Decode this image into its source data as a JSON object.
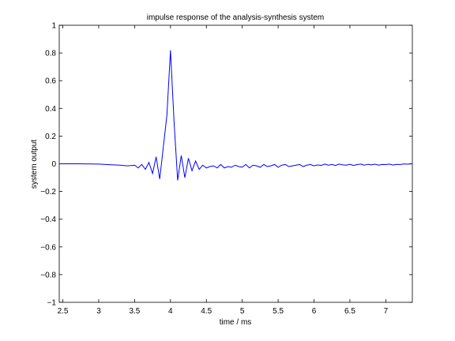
{
  "chart_data": {
    "type": "line",
    "title": "impulse response of the analysis-synthesis system",
    "xlabel": "time / ms",
    "ylabel": "system output",
    "xlim": [
      2.45,
      7.37
    ],
    "ylim": [
      -1,
      1
    ],
    "grid": false,
    "legend": "none",
    "xticks": [
      2.5,
      3,
      3.5,
      4,
      4.5,
      5,
      5.5,
      6,
      6.5,
      7
    ],
    "xtick_labels": [
      "2.5",
      "3",
      "3.5",
      "4",
      "4.5",
      "5",
      "5.5",
      "6",
      "6.5",
      "7"
    ],
    "yticks": [
      -1,
      -0.8,
      -0.6,
      -0.4,
      -0.2,
      0,
      0.2,
      0.4,
      0.6,
      0.8,
      1
    ],
    "ytick_labels": [
      "−1",
      "−0.8",
      "−0.6",
      "−0.4",
      "−0.2",
      "0",
      "0.2",
      "0.4",
      "0.6",
      "0.8",
      "1"
    ],
    "series": [
      {
        "color": "#0000ff",
        "x": [
          2.45,
          2.7,
          3.0,
          3.1,
          3.2,
          3.3,
          3.4,
          3.5,
          3.55,
          3.6,
          3.65,
          3.7,
          3.75,
          3.8,
          3.85,
          3.9,
          3.95,
          4.0,
          4.05,
          4.1,
          4.15,
          4.2,
          4.25,
          4.3,
          4.35,
          4.4,
          4.45,
          4.5,
          4.55,
          4.6,
          4.65,
          4.7,
          4.75,
          4.8,
          4.85,
          4.9,
          4.95,
          5.0,
          5.05,
          5.1,
          5.15,
          5.2,
          5.25,
          5.3,
          5.35,
          5.4,
          5.45,
          5.5,
          5.55,
          5.6,
          5.65,
          5.7,
          5.75,
          5.8,
          5.85,
          5.9,
          5.95,
          6.0,
          6.05,
          6.1,
          6.15,
          6.2,
          6.25,
          6.3,
          6.35,
          6.4,
          6.45,
          6.5,
          6.55,
          6.6,
          6.65,
          6.7,
          6.75,
          6.8,
          6.85,
          6.9,
          6.95,
          7.0,
          7.05,
          7.1,
          7.15,
          7.2,
          7.25,
          7.3,
          7.37
        ],
        "y": [
          0.0,
          0.0,
          -0.002,
          -0.005,
          -0.008,
          -0.01,
          -0.015,
          -0.01,
          -0.03,
          -0.005,
          -0.04,
          0.01,
          -0.07,
          0.05,
          -0.11,
          0.12,
          0.35,
          0.82,
          0.3,
          -0.12,
          0.06,
          -0.1,
          0.04,
          -0.05,
          0.02,
          -0.04,
          -0.01,
          -0.03,
          -0.02,
          -0.015,
          -0.03,
          -0.005,
          -0.03,
          -0.02,
          -0.025,
          -0.01,
          -0.02,
          -0.025,
          -0.005,
          -0.03,
          -0.01,
          -0.015,
          -0.025,
          -0.005,
          -0.02,
          -0.015,
          -0.005,
          -0.025,
          -0.01,
          -0.005,
          -0.02,
          -0.015,
          -0.01,
          -0.005,
          -0.02,
          -0.01,
          -0.005,
          -0.015,
          -0.008,
          -0.012,
          -0.002,
          -0.01,
          -0.005,
          -0.012,
          -0.002,
          -0.008,
          -0.01,
          -0.004,
          -0.012,
          -0.006,
          -0.002,
          -0.01,
          -0.004,
          -0.008,
          -0.003,
          -0.01,
          -0.005,
          -0.006,
          -0.002,
          -0.009,
          -0.004,
          -0.006,
          -0.001,
          -0.003,
          0.0
        ]
      }
    ]
  }
}
